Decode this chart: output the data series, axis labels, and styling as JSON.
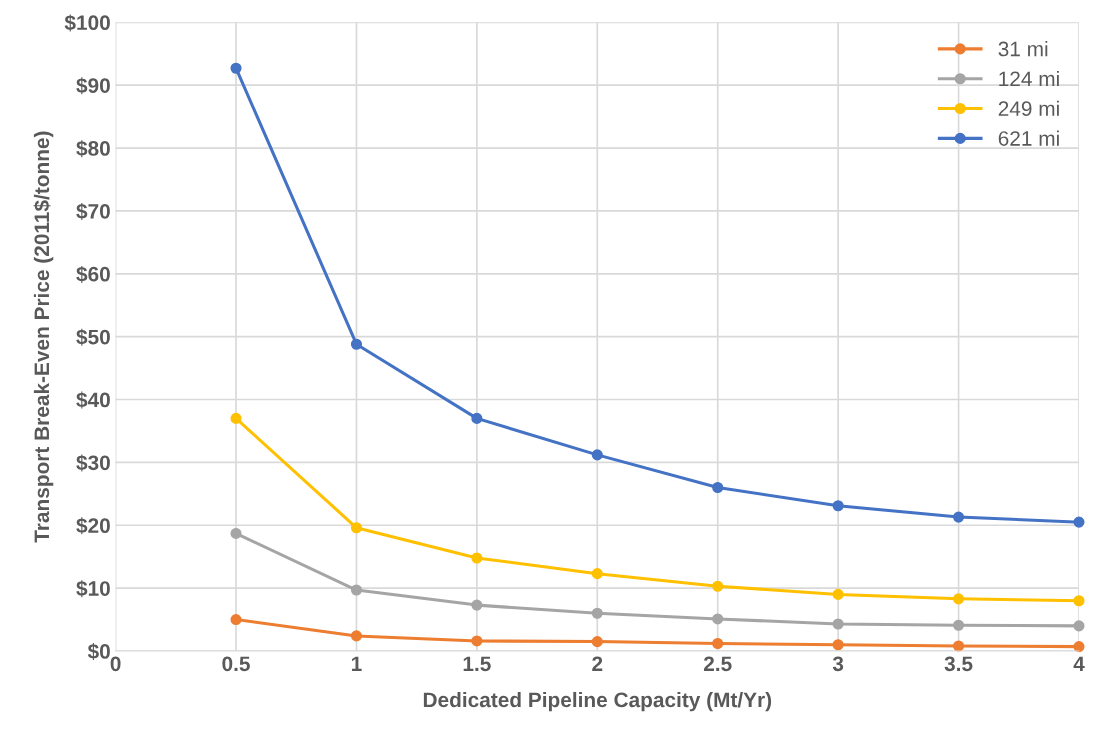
{
  "chart_data": {
    "type": "line",
    "xlabel": "Dedicated Pipeline Capacity (Mt/Yr)",
    "ylabel": "Transport Break-Even Price (2011$/tonne)",
    "x": [
      0.5,
      1,
      1.5,
      2,
      2.5,
      3,
      3.5,
      4
    ],
    "series": [
      {
        "name": "31 mi",
        "color": "#ed7d31",
        "values": [
          5.0,
          2.4,
          1.6,
          1.5,
          1.2,
          1.0,
          0.8,
          0.7
        ]
      },
      {
        "name": "124 mi",
        "color": "#a5a5a5",
        "values": [
          18.7,
          9.7,
          7.3,
          6.0,
          5.1,
          4.3,
          4.1,
          4.0
        ]
      },
      {
        "name": "249 mi",
        "color": "#ffc000",
        "values": [
          37.0,
          19.6,
          14.8,
          12.3,
          10.3,
          9.0,
          8.3,
          8.0
        ]
      },
      {
        "name": "621 mi",
        "color": "#4472c4",
        "values": [
          92.7,
          48.8,
          37.0,
          31.2,
          26.0,
          23.1,
          21.3,
          20.5
        ]
      }
    ],
    "xlim": [
      0,
      4
    ],
    "xticks": [
      0,
      0.5,
      1,
      1.5,
      2,
      2.5,
      3,
      3.5,
      4
    ],
    "ylim": [
      0,
      100
    ],
    "yticks": [
      {
        "value": 0,
        "label": "$0"
      },
      {
        "value": 10,
        "label": "$10"
      },
      {
        "value": 20,
        "label": "$20"
      },
      {
        "value": 30,
        "label": "$30"
      },
      {
        "value": 40,
        "label": "$40"
      },
      {
        "value": 50,
        "label": "$50"
      },
      {
        "value": 60,
        "label": "$60"
      },
      {
        "value": 70,
        "label": "$70"
      },
      {
        "value": 80,
        "label": "$80"
      },
      {
        "value": 90,
        "label": "$90"
      },
      {
        "value": 100,
        "label": "$100"
      }
    ],
    "grid": true,
    "legend": "top right",
    "marker": "circle",
    "line_style": "solid"
  }
}
